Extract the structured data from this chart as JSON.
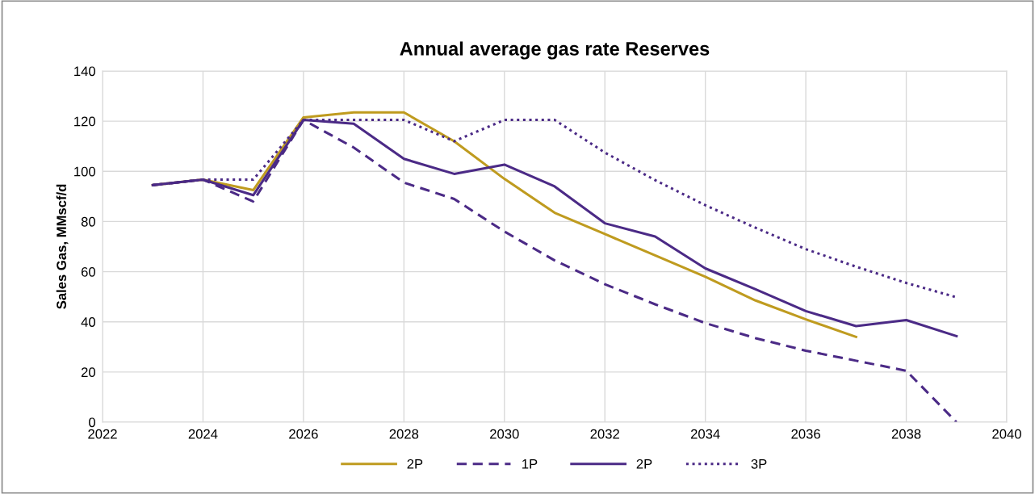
{
  "chart_data": {
    "type": "line",
    "title": "Annual average gas rate Reserves",
    "ylabel": "Sales Gas, MMscf/d",
    "x": [
      2023,
      2024,
      2025,
      2026,
      2027,
      2028,
      2029,
      2030,
      2031,
      2032,
      2033,
      2034,
      2035,
      2036,
      2037,
      2038,
      2039
    ],
    "series": [
      {
        "name": "2P",
        "color": "#bf9b1f",
        "line_style": "solid",
        "values": [
          94.5,
          96.7,
          92.5,
          121.5,
          123.5,
          123.5,
          112,
          97,
          83.5,
          75,
          66.5,
          58,
          48.5,
          41,
          34,
          null,
          null
        ]
      },
      {
        "name": "1P",
        "color": "#4b2a86",
        "line_style": "dashed",
        "values": [
          94.5,
          96.7,
          88,
          120.5,
          109.5,
          95.5,
          89,
          76,
          64.5,
          55,
          47,
          39.5,
          33.5,
          28.5,
          24.5,
          20.5,
          0
        ]
      },
      {
        "name": "2P",
        "color": "#4b2a86",
        "line_style": "solid",
        "values": [
          94.5,
          96.7,
          90.5,
          120.5,
          119,
          105,
          99,
          102.7,
          94,
          79.3,
          74,
          61.3,
          53,
          44.3,
          38.3,
          40.7,
          34.3
        ]
      },
      {
        "name": "3P",
        "color": "#4b2a86",
        "line_style": "dotted",
        "values": [
          94.5,
          96.7,
          96.7,
          120.5,
          120.5,
          120.5,
          112,
          120.5,
          120.5,
          107.5,
          96.5,
          86.5,
          77.5,
          69,
          62,
          55.5,
          49.8
        ]
      }
    ],
    "xlim": [
      2022,
      2040
    ],
    "xticks": [
      2022,
      2024,
      2026,
      2028,
      2030,
      2032,
      2034,
      2036,
      2038,
      2040
    ],
    "ylim": [
      0,
      140
    ],
    "yticks": [
      0,
      20,
      40,
      60,
      80,
      100,
      120,
      140
    ],
    "grid": true,
    "legend": "bottom",
    "marker": "none"
  }
}
